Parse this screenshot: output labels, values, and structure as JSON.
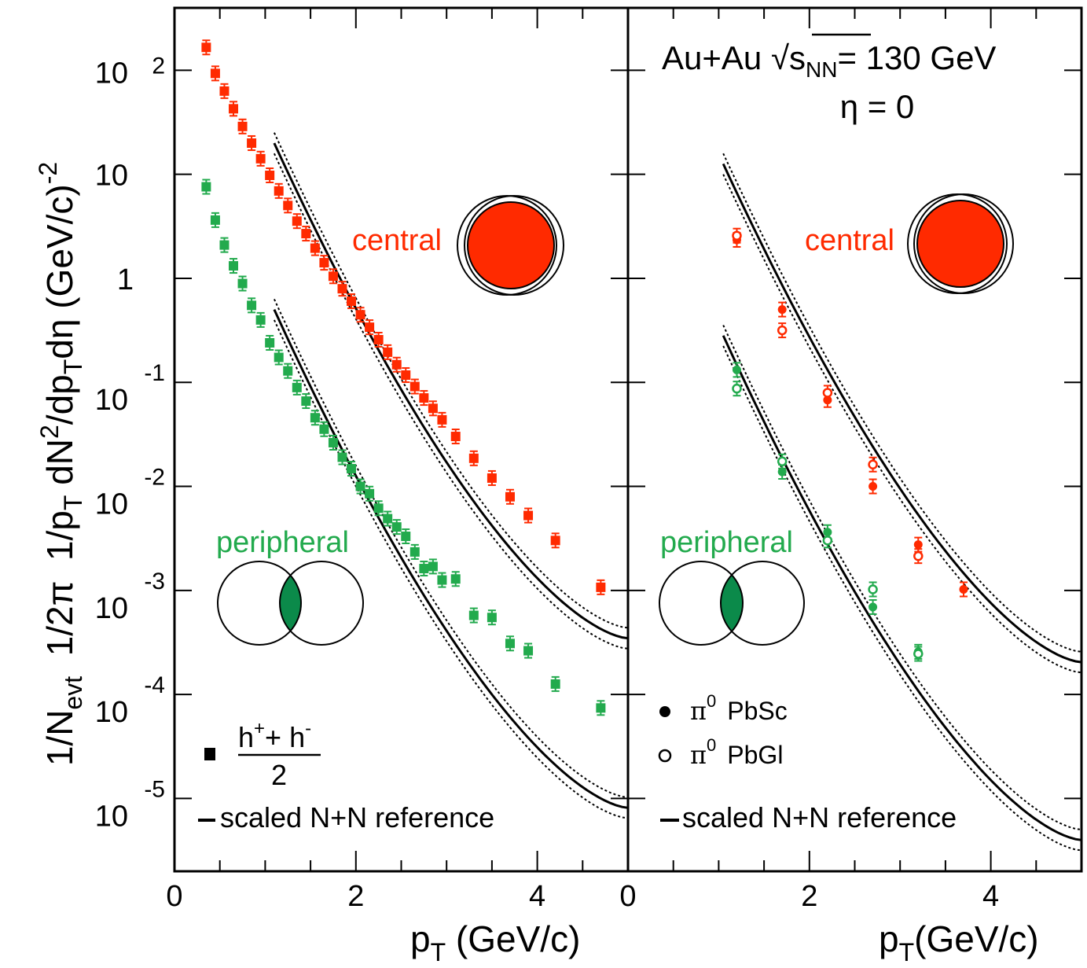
{
  "chart_data": [
    {
      "type": "scatter",
      "panel": "left",
      "xlabel_main": "p",
      "xlabel_sub": "T",
      "xlabel_rest": " (GeV/c)",
      "ylabel_parts": [
        "1/N",
        "evt",
        "  1/2π  1/p",
        "T",
        " dN",
        "2",
        "/dp",
        "T",
        "dη (GeV/c)",
        "-2"
      ],
      "ylabel": "1/N_evt 1/2π 1/p_T dN^2/dp_T dη (GeV/c)^-2",
      "xlim": [
        0,
        5
      ],
      "ylim_log10": [
        -5.7,
        2.6
      ],
      "y_scale": "log",
      "x_tick_labels": [
        "0",
        "2",
        "4"
      ],
      "x_tick_values": [
        0,
        2,
        4
      ],
      "y_tick_labels": [
        {
          "mant": "10",
          "exp": "2",
          "value_log10": 2
        },
        {
          "mant": "10",
          "exp": "",
          "value_log10": 1
        },
        {
          "mant": "1",
          "exp": "",
          "value_log10": 0
        },
        {
          "mant": "10",
          "exp": "-1",
          "value_log10": -1
        },
        {
          "mant": "10",
          "exp": "-2",
          "value_log10": -2
        },
        {
          "mant": "10",
          "exp": "-3",
          "value_log10": -3
        },
        {
          "mant": "10",
          "exp": "-4",
          "value_log10": -4
        },
        {
          "mant": "10",
          "exp": "-5",
          "value_log10": -5
        }
      ],
      "labels": {
        "central": "central",
        "peripheral": "peripheral"
      },
      "legend": {
        "marker": "square",
        "numerator": "h",
        "num_sup1": "+",
        "num_mid": "+ h",
        "num_sup2": "-",
        "denominator": "2",
        "reference": "scaled N+N reference"
      },
      "series": [
        {
          "name": "central",
          "color": "#ff2a00",
          "marker": "square",
          "points": [
            [
              0.35,
              2.22
            ],
            [
              0.45,
              1.97
            ],
            [
              0.55,
              1.8
            ],
            [
              0.65,
              1.63
            ],
            [
              0.75,
              1.46
            ],
            [
              0.85,
              1.3
            ],
            [
              0.95,
              1.15
            ],
            [
              1.05,
              0.99
            ],
            [
              1.15,
              0.84
            ],
            [
              1.25,
              0.7
            ],
            [
              1.35,
              0.55
            ],
            [
              1.45,
              0.43
            ],
            [
              1.55,
              0.29
            ],
            [
              1.65,
              0.15
            ],
            [
              1.75,
              0.02
            ],
            [
              1.85,
              -0.1
            ],
            [
              1.95,
              -0.22
            ],
            [
              2.05,
              -0.35
            ],
            [
              2.15,
              -0.47
            ],
            [
              2.25,
              -0.59
            ],
            [
              2.35,
              -0.71
            ],
            [
              2.45,
              -0.83
            ],
            [
              2.55,
              -0.93
            ],
            [
              2.65,
              -1.04
            ],
            [
              2.75,
              -1.15
            ],
            [
              2.85,
              -1.25
            ],
            [
              2.95,
              -1.36
            ],
            [
              3.1,
              -1.52
            ],
            [
              3.3,
              -1.73
            ],
            [
              3.5,
              -1.92
            ],
            [
              3.7,
              -2.1
            ],
            [
              3.9,
              -2.28
            ],
            [
              4.2,
              -2.52
            ],
            [
              4.7,
              -2.97
            ]
          ]
        },
        {
          "name": "peripheral",
          "color": "#22aa4d",
          "marker": "square",
          "points": [
            [
              0.35,
              0.88
            ],
            [
              0.45,
              0.56
            ],
            [
              0.55,
              0.32
            ],
            [
              0.65,
              0.12
            ],
            [
              0.75,
              -0.05
            ],
            [
              0.85,
              -0.26
            ],
            [
              0.95,
              -0.4
            ],
            [
              1.05,
              -0.62
            ],
            [
              1.15,
              -0.76
            ],
            [
              1.25,
              -0.89
            ],
            [
              1.35,
              -1.05
            ],
            [
              1.45,
              -1.18
            ],
            [
              1.55,
              -1.34
            ],
            [
              1.65,
              -1.45
            ],
            [
              1.75,
              -1.58
            ],
            [
              1.85,
              -1.72
            ],
            [
              1.95,
              -1.83
            ],
            [
              2.05,
              -2.0
            ],
            [
              2.15,
              -2.07
            ],
            [
              2.25,
              -2.21
            ],
            [
              2.35,
              -2.31
            ],
            [
              2.45,
              -2.39
            ],
            [
              2.55,
              -2.48
            ],
            [
              2.65,
              -2.63
            ],
            [
              2.75,
              -2.79
            ],
            [
              2.85,
              -2.77
            ],
            [
              2.95,
              -2.9
            ],
            [
              3.1,
              -2.89
            ],
            [
              3.3,
              -3.24
            ],
            [
              3.5,
              -3.26
            ],
            [
              3.7,
              -3.51
            ],
            [
              3.9,
              -3.58
            ],
            [
              4.2,
              -3.9
            ],
            [
              4.7,
              -4.13
            ]
          ]
        }
      ],
      "reference_curves": [
        {
          "name": "central",
          "x": [
            1.1,
            5.0
          ],
          "log10_at_x1": 1.3,
          "log10_at_x5": -3.46,
          "band": 0.1
        },
        {
          "name": "peripheral",
          "x": [
            1.1,
            5.0
          ],
          "log10_at_x1": -0.3,
          "log10_at_x5": -5.09,
          "band": 0.1
        }
      ]
    },
    {
      "type": "scatter",
      "panel": "right",
      "title_parts": {
        "pre": "Au+Au ",
        "sqrt": "√",
        "s": "s",
        "sub": "NN",
        "post": "= 130 GeV"
      },
      "title": "Au+Au √s_NN= 130 GeV",
      "subtitle": "η = 0",
      "xlabel_main": "p",
      "xlabel_sub": "T",
      "xlabel_rest": "(GeV/c)",
      "xlim": [
        0,
        5
      ],
      "ylim_log10": [
        -5.7,
        2.6
      ],
      "y_scale": "log",
      "x_tick_labels": [
        "0",
        "2",
        "4"
      ],
      "x_tick_values": [
        0,
        2,
        4
      ],
      "labels": {
        "central": "central",
        "peripheral": "peripheral"
      },
      "legend": {
        "pbsc": {
          "marker": "filled-circle",
          "pi": "π",
          "sup": "0",
          "name": "PbSc"
        },
        "pbgl": {
          "marker": "open-circle",
          "pi": "π",
          "sup": "0",
          "name": "PbGl"
        },
        "reference": "scaled N+N reference"
      },
      "series": [
        {
          "name": "central PbSc",
          "color": "#ff2a00",
          "marker": "filled-circle",
          "points": [
            [
              1.2,
              0.37
            ],
            [
              1.7,
              -0.3
            ],
            [
              2.2,
              -1.17
            ],
            [
              2.7,
              -2.0
            ],
            [
              3.2,
              -2.56
            ],
            [
              3.7,
              -2.99
            ]
          ]
        },
        {
          "name": "central PbGl",
          "color": "#ff2a00",
          "marker": "open-circle",
          "points": [
            [
              1.2,
              0.41
            ],
            [
              1.7,
              -0.5
            ],
            [
              2.2,
              -1.1
            ],
            [
              2.7,
              -1.79
            ],
            [
              3.2,
              -2.67
            ]
          ]
        },
        {
          "name": "peripheral PbSc",
          "color": "#22aa4d",
          "marker": "filled-circle",
          "points": [
            [
              1.2,
              -0.88
            ],
            [
              1.7,
              -1.86
            ],
            [
              2.2,
              -2.44
            ],
            [
              2.7,
              -3.16
            ],
            [
              3.2,
              -3.59
            ]
          ]
        },
        {
          "name": "peripheral PbGl",
          "color": "#22aa4d",
          "marker": "open-circle",
          "points": [
            [
              1.2,
              -1.06
            ],
            [
              1.7,
              -1.76
            ],
            [
              2.2,
              -2.52
            ],
            [
              2.7,
              -2.99
            ],
            [
              3.2,
              -3.61
            ]
          ]
        }
      ],
      "reference_curves": [
        {
          "name": "central",
          "x": [
            1.05,
            5.0
          ],
          "log10_at_x1": 1.1,
          "log10_at_x5": -3.69,
          "band": 0.1
        },
        {
          "name": "peripheral",
          "x": [
            1.05,
            5.0
          ],
          "log10_at_x1": -0.55,
          "log10_at_x5": -5.4,
          "band": 0.1
        }
      ]
    }
  ],
  "colors": {
    "central": "#ff2a00",
    "peripheral": "#22aa4d",
    "peripheral_overlap": "#0b8a4a"
  }
}
